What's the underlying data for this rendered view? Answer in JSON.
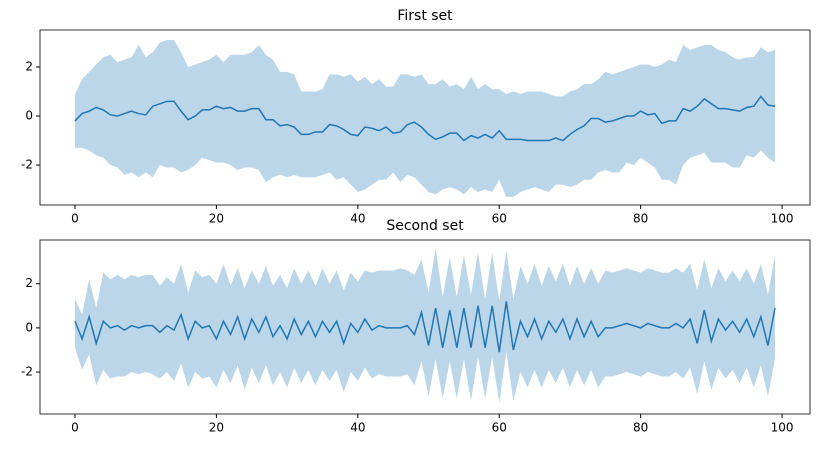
{
  "chart_data": [
    {
      "type": "line",
      "title": "First set",
      "x": [
        0,
        1,
        2,
        3,
        4,
        5,
        6,
        7,
        8,
        9,
        10,
        11,
        12,
        13,
        14,
        15,
        16,
        17,
        18,
        19,
        20,
        21,
        22,
        23,
        24,
        25,
        26,
        27,
        28,
        29,
        30,
        31,
        32,
        33,
        34,
        35,
        36,
        37,
        38,
        39,
        40,
        41,
        42,
        43,
        44,
        45,
        46,
        47,
        48,
        49,
        50,
        51,
        52,
        53,
        54,
        55,
        56,
        57,
        58,
        59,
        60,
        61,
        62,
        63,
        64,
        65,
        66,
        67,
        68,
        69,
        70,
        71,
        72,
        73,
        74,
        75,
        76,
        77,
        78,
        79,
        80,
        81,
        82,
        83,
        84,
        85,
        86,
        87,
        88,
        89,
        90,
        91,
        92,
        93,
        94,
        95,
        96,
        97,
        98,
        99
      ],
      "series": [
        {
          "color": "#1f77b4",
          "band_opacity": 0.3,
          "values": [
            -0.2,
            0.1,
            0.2,
            0.35,
            0.25,
            0.05,
            0.0,
            0.1,
            0.2,
            0.1,
            0.05,
            0.4,
            0.5,
            0.6,
            0.6,
            0.2,
            -0.15,
            0.0,
            0.25,
            0.25,
            0.4,
            0.3,
            0.35,
            0.2,
            0.2,
            0.3,
            0.3,
            -0.15,
            -0.15,
            -0.4,
            -0.35,
            -0.45,
            -0.75,
            -0.75,
            -0.65,
            -0.65,
            -0.35,
            -0.4,
            -0.55,
            -0.75,
            -0.8,
            -0.45,
            -0.5,
            -0.6,
            -0.45,
            -0.7,
            -0.65,
            -0.35,
            -0.25,
            -0.45,
            -0.75,
            -0.95,
            -0.85,
            -0.7,
            -0.7,
            -1.0,
            -0.8,
            -0.9,
            -0.75,
            -0.9,
            -0.6,
            -0.95,
            -0.95,
            -0.95,
            -1.0,
            -1.0,
            -1.0,
            -1.0,
            -0.9,
            -1.0,
            -0.75,
            -0.55,
            -0.4,
            -0.1,
            -0.1,
            -0.25,
            -0.2,
            -0.1,
            0.0,
            0.0,
            0.2,
            0.05,
            0.1,
            -0.3,
            -0.2,
            -0.2,
            0.3,
            0.2,
            0.4,
            0.7,
            0.5,
            0.3,
            0.3,
            0.25,
            0.2,
            0.35,
            0.4,
            0.8,
            0.45,
            0.4
          ],
          "upper": [
            0.9,
            1.5,
            1.8,
            2.1,
            2.4,
            2.5,
            2.2,
            2.3,
            2.4,
            2.9,
            2.4,
            2.6,
            3.0,
            3.1,
            3.1,
            2.6,
            2.0,
            2.1,
            2.2,
            2.3,
            2.5,
            2.2,
            2.5,
            2.5,
            2.5,
            2.6,
            2.9,
            2.5,
            2.3,
            1.8,
            1.8,
            1.7,
            1.0,
            1.0,
            1.0,
            1.1,
            1.7,
            1.7,
            1.6,
            1.7,
            1.4,
            1.6,
            1.3,
            1.5,
            1.2,
            1.2,
            1.7,
            1.7,
            1.6,
            1.7,
            1.3,
            1.3,
            1.5,
            1.2,
            1.3,
            1.1,
            1.6,
            1.1,
            1.3,
            1.1,
            1.1,
            0.9,
            1.0,
            0.9,
            1.0,
            1.0,
            1.0,
            0.9,
            0.8,
            0.8,
            1.0,
            1.1,
            1.3,
            1.3,
            1.5,
            1.8,
            1.7,
            1.8,
            1.9,
            2.0,
            2.1,
            2.1,
            2.0,
            2.1,
            2.3,
            2.2,
            2.9,
            2.7,
            2.8,
            2.9,
            2.9,
            2.7,
            2.6,
            2.4,
            2.3,
            2.4,
            2.4,
            2.8,
            2.6,
            2.7
          ],
          "lower": [
            -1.3,
            -1.3,
            -1.4,
            -1.6,
            -1.7,
            -2.0,
            -2.1,
            -2.4,
            -2.3,
            -2.5,
            -2.3,
            -2.5,
            -2.0,
            -2.1,
            -2.1,
            -2.3,
            -2.2,
            -2.0,
            -1.7,
            -1.8,
            -1.9,
            -1.9,
            -2.0,
            -2.2,
            -2.1,
            -2.1,
            -2.2,
            -2.7,
            -2.5,
            -2.4,
            -2.5,
            -2.4,
            -2.5,
            -2.5,
            -2.5,
            -2.4,
            -2.3,
            -2.6,
            -2.5,
            -2.8,
            -3.1,
            -3.0,
            -2.8,
            -2.6,
            -2.6,
            -2.3,
            -2.7,
            -2.4,
            -2.5,
            -2.8,
            -3.1,
            -3.2,
            -3.0,
            -2.9,
            -3.0,
            -3.2,
            -2.9,
            -3.1,
            -3.0,
            -3.1,
            -2.6,
            -3.3,
            -3.3,
            -3.1,
            -3.0,
            -2.9,
            -3.0,
            -3.1,
            -2.8,
            -2.8,
            -2.9,
            -2.8,
            -2.6,
            -2.6,
            -2.3,
            -2.2,
            -2.3,
            -2.3,
            -1.9,
            -2.0,
            -1.7,
            -1.9,
            -2.1,
            -2.6,
            -2.6,
            -2.8,
            -2.0,
            -1.7,
            -1.6,
            -1.5,
            -1.9,
            -1.9,
            -1.9,
            -2.1,
            -2.1,
            -1.6,
            -1.7,
            -1.4,
            -1.7,
            -1.9
          ]
        }
      ],
      "xlim": [
        -4.95,
        103.95
      ],
      "ylim": [
        -3.63,
        3.51
      ],
      "xticks": [
        0,
        20,
        40,
        60,
        80,
        100
      ],
      "yticks": [
        -2,
        0,
        2
      ]
    },
    {
      "type": "line",
      "title": "Second set",
      "x": [
        0,
        1,
        2,
        3,
        4,
        5,
        6,
        7,
        8,
        9,
        10,
        11,
        12,
        13,
        14,
        15,
        16,
        17,
        18,
        19,
        20,
        21,
        22,
        23,
        24,
        25,
        26,
        27,
        28,
        29,
        30,
        31,
        32,
        33,
        34,
        35,
        36,
        37,
        38,
        39,
        40,
        41,
        42,
        43,
        44,
        45,
        46,
        47,
        48,
        49,
        50,
        51,
        52,
        53,
        54,
        55,
        56,
        57,
        58,
        59,
        60,
        61,
        62,
        63,
        64,
        65,
        66,
        67,
        68,
        69,
        70,
        71,
        72,
        73,
        74,
        75,
        76,
        77,
        78,
        79,
        80,
        81,
        82,
        83,
        84,
        85,
        86,
        87,
        88,
        89,
        90,
        91,
        92,
        93,
        94,
        95,
        96,
        97,
        98,
        99
      ],
      "series": [
        {
          "color": "#1f77b4",
          "band_opacity": 0.3,
          "values": [
            0.3,
            -0.5,
            0.5,
            -0.7,
            0.3,
            0.0,
            0.1,
            -0.1,
            0.1,
            0.0,
            0.1,
            0.1,
            -0.2,
            0.1,
            -0.1,
            0.6,
            -0.5,
            0.3,
            0.0,
            0.1,
            -0.5,
            0.3,
            -0.3,
            0.5,
            -0.5,
            0.4,
            -0.2,
            0.5,
            -0.4,
            0.1,
            -0.5,
            0.4,
            -0.3,
            0.3,
            -0.4,
            0.3,
            -0.2,
            0.3,
            -0.7,
            0.2,
            -0.2,
            0.4,
            -0.1,
            0.1,
            0.0,
            0.0,
            0.0,
            0.1,
            -0.3,
            0.7,
            -0.8,
            0.9,
            -0.9,
            0.8,
            -0.9,
            0.9,
            -0.9,
            1.0,
            -0.9,
            1.0,
            -1.1,
            1.2,
            -1.0,
            0.3,
            -0.4,
            0.4,
            -0.5,
            0.3,
            -0.2,
            0.4,
            -0.5,
            0.4,
            -0.4,
            0.3,
            -0.4,
            0.0,
            0.0,
            0.1,
            0.2,
            0.1,
            0.0,
            0.2,
            0.1,
            0.0,
            0.0,
            0.2,
            0.0,
            0.4,
            -0.7,
            0.8,
            -0.6,
            0.4,
            -0.1,
            0.3,
            -0.2,
            0.4,
            -0.4,
            0.5,
            -0.8,
            0.9
          ],
          "upper": [
            1.3,
            0.6,
            2.2,
            0.9,
            2.5,
            2.2,
            2.4,
            2.2,
            2.4,
            2.3,
            2.4,
            2.4,
            1.9,
            2.3,
            2.0,
            2.9,
            1.6,
            2.6,
            2.3,
            2.4,
            2.0,
            2.9,
            1.9,
            2.7,
            1.8,
            2.6,
            2.0,
            2.8,
            1.9,
            2.4,
            1.8,
            2.7,
            2.0,
            2.6,
            1.9,
            2.7,
            2.0,
            2.6,
            1.7,
            2.5,
            2.1,
            2.6,
            2.5,
            2.6,
            2.6,
            2.6,
            2.7,
            2.6,
            2.4,
            3.1,
            1.6,
            3.6,
            1.4,
            3.2,
            1.4,
            3.3,
            1.5,
            3.4,
            1.3,
            3.4,
            1.2,
            3.5,
            1.3,
            2.8,
            2.0,
            2.9,
            1.9,
            2.8,
            2.1,
            2.9,
            1.9,
            2.8,
            2.0,
            2.7,
            2.0,
            2.6,
            2.5,
            2.6,
            2.7,
            2.6,
            2.5,
            2.7,
            2.6,
            2.5,
            2.5,
            2.7,
            2.5,
            2.9,
            1.7,
            3.1,
            1.8,
            2.7,
            2.1,
            2.6,
            2.1,
            2.7,
            2.0,
            2.9,
            1.5,
            3.3
          ],
          "lower": [
            -0.9,
            -1.9,
            -1.2,
            -2.6,
            -1.9,
            -2.3,
            -2.2,
            -2.2,
            -2.0,
            -2.1,
            -2.0,
            -2.1,
            -2.3,
            -2.0,
            -2.4,
            -1.6,
            -2.7,
            -2.0,
            -2.3,
            -2.2,
            -2.7,
            -1.9,
            -2.5,
            -1.7,
            -2.8,
            -1.8,
            -2.5,
            -1.7,
            -2.6,
            -2.0,
            -2.7,
            -1.8,
            -2.5,
            -1.9,
            -2.6,
            -1.9,
            -2.4,
            -1.9,
            -2.9,
            -2.0,
            -2.4,
            -1.8,
            -2.3,
            -2.1,
            -2.2,
            -2.2,
            -2.2,
            -2.1,
            -2.6,
            -1.5,
            -3.1,
            -1.4,
            -3.2,
            -1.5,
            -3.2,
            -1.4,
            -3.3,
            -1.3,
            -3.2,
            -1.3,
            -3.4,
            -1.1,
            -3.3,
            -2.0,
            -2.7,
            -1.9,
            -2.7,
            -1.9,
            -2.5,
            -1.8,
            -2.7,
            -1.9,
            -2.6,
            -1.9,
            -2.7,
            -2.2,
            -2.2,
            -2.1,
            -2.0,
            -2.1,
            -2.2,
            -2.0,
            -2.1,
            -2.2,
            -2.2,
            -2.0,
            -2.3,
            -1.8,
            -3.0,
            -1.5,
            -2.8,
            -1.8,
            -2.3,
            -1.9,
            -2.5,
            -1.8,
            -2.7,
            -1.7,
            -3.1,
            -1.4
          ]
        }
      ],
      "xlim": [
        -4.95,
        103.95
      ],
      "ylim": [
        -3.9,
        3.98
      ],
      "xticks": [
        0,
        20,
        40,
        60,
        80,
        100
      ],
      "yticks": [
        -2,
        0,
        2
      ]
    }
  ]
}
